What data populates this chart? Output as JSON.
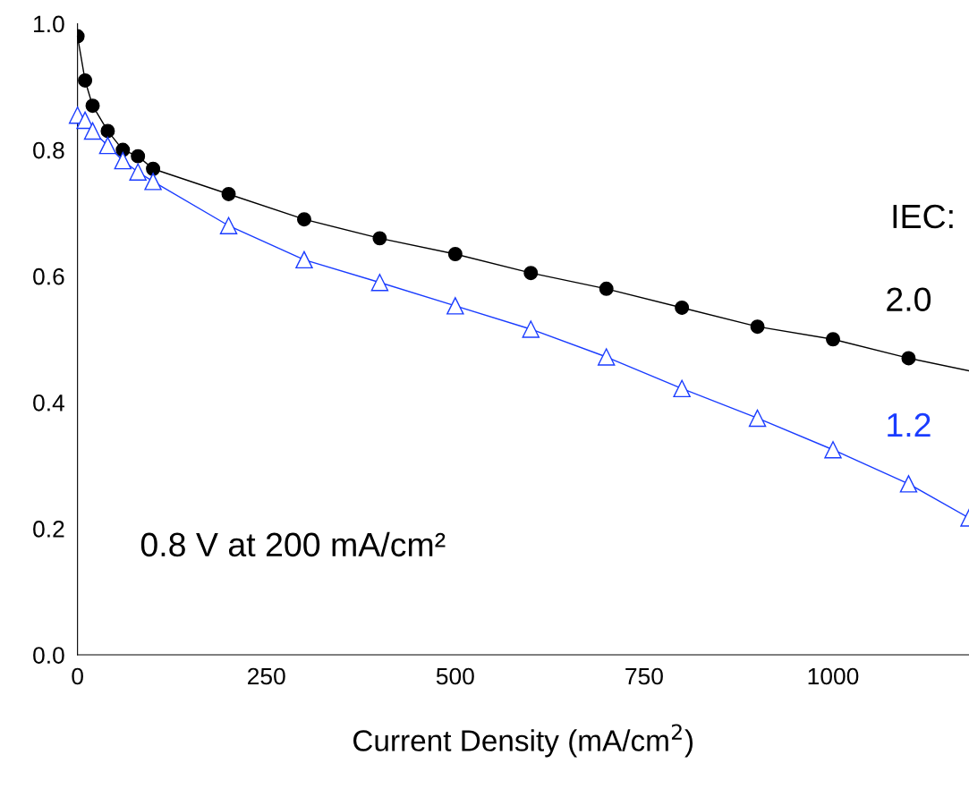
{
  "chart_data": {
    "type": "line",
    "xlabel": "Current Density (mA/cm$^{2}$)",
    "xlim": [
      0,
      1180
    ],
    "ylim": [
      0,
      1.0
    ],
    "xticks": [
      0,
      250,
      500,
      750,
      1000
    ],
    "yticks": [
      {
        "value": 0,
        "label": "0.0"
      },
      {
        "value": 0.2,
        "label": "0.2"
      },
      {
        "value": 0.4,
        "label": "0.4"
      },
      {
        "value": 0.6,
        "label": "0.6"
      },
      {
        "value": 0.8,
        "label": "0.8"
      },
      {
        "value": 1.0,
        "label": "1.0"
      }
    ],
    "grid": false,
    "legend": false,
    "annotations": [
      "IEC:",
      "0.8 V at 200 mA/cm²"
    ],
    "series": [
      {
        "name": "2.0",
        "color": "#000000",
        "type": "scatter",
        "marker": "circle",
        "x": [
          0,
          10,
          20,
          40,
          60,
          80,
          100,
          200,
          300,
          400,
          500,
          600,
          700,
          800,
          900,
          1000,
          1100
        ],
        "values": [
          0.98,
          0.91,
          0.87,
          0.83,
          0.8,
          0.79,
          0.77,
          0.73,
          0.69,
          0.66,
          0.635,
          0.605,
          0.58,
          0.55,
          0.52,
          0.5,
          0.47
        ]
      },
      {
        "color": "#000000",
        "type": "line",
        "marker": "none",
        "x": [
          0,
          10,
          20,
          40,
          60,
          80,
          100,
          200,
          300,
          400,
          500,
          600,
          700,
          800,
          900,
          1000,
          1100,
          1180
        ],
        "values": [
          0.98,
          0.91,
          0.87,
          0.83,
          0.8,
          0.79,
          0.77,
          0.73,
          0.69,
          0.66,
          0.635,
          0.605,
          0.58,
          0.55,
          0.52,
          0.5,
          0.47,
          0.45
        ]
      },
      {
        "name": "1.2",
        "color": "#1a3cff",
        "marker": "triangle",
        "x": [
          0,
          10,
          20,
          40,
          60,
          80,
          100,
          200,
          300,
          400,
          500,
          600,
          700,
          800,
          900,
          1000,
          1100,
          1180
        ],
        "values": [
          0.855,
          0.847,
          0.83,
          0.807,
          0.783,
          0.765,
          0.75,
          0.68,
          0.626,
          0.59,
          0.553,
          0.516,
          0.472,
          0.422,
          0.375,
          0.325,
          0.271,
          0.217
        ]
      }
    ]
  }
}
